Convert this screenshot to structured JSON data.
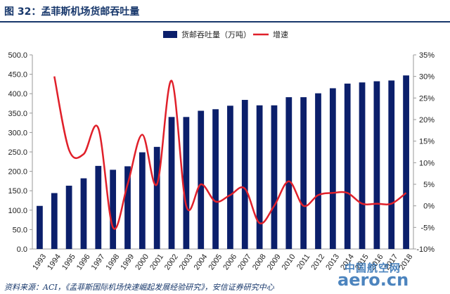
{
  "figure": {
    "title": "图 32：孟菲斯机场货邮吞吐量",
    "source": "资料来源：ACI，《孟菲斯国际机场快速崛起发展经验研究》，安信证券研究中心",
    "watermark": "aero.cn 中国航空网"
  },
  "chart_data": {
    "type": "bar",
    "categories": [
      "1993",
      "1994",
      "1995",
      "1996",
      "1997",
      "1998",
      "1999",
      "2000",
      "2001",
      "2002",
      "2003",
      "2004",
      "2005",
      "2006",
      "2007",
      "2008",
      "2009",
      "2010",
      "2011",
      "2012",
      "2013",
      "2014",
      "2015",
      "2016",
      "2017",
      "2018"
    ],
    "series": [
      {
        "name": "货邮吞吐量（万吨）",
        "type": "bar",
        "axis": "left",
        "color": "#0b1f6b",
        "values": [
          111,
          144,
          163,
          182,
          214,
          204,
          213,
          249,
          263,
          340,
          340,
          356,
          360,
          369,
          384,
          370,
          370,
          391,
          391,
          401,
          414,
          426,
          429,
          432,
          434,
          447
        ]
      },
      {
        "name": "增速",
        "type": "line",
        "axis": "right",
        "color": "#e0202a",
        "values": [
          null,
          30.0,
          13.0,
          12.0,
          18.0,
          -5.0,
          5.0,
          16.5,
          5.0,
          29.0,
          0.0,
          5.0,
          1.0,
          2.5,
          4.0,
          -4.0,
          0.0,
          5.7,
          0.0,
          2.5,
          3.0,
          3.0,
          0.5,
          0.5,
          0.5,
          3.0
        ]
      }
    ],
    "y_left": {
      "min": 0,
      "max": 500,
      "step": 50,
      "tick_labels": [
        "0.0",
        "50.0",
        "100.0",
        "150.0",
        "200.0",
        "250.0",
        "300.0",
        "350.0",
        "400.0",
        "450.0",
        "500.0"
      ]
    },
    "y_right": {
      "min": -10,
      "max": 35,
      "step": 5,
      "tick_labels": [
        "-10%",
        "-5%",
        "0%",
        "5%",
        "10%",
        "15%",
        "20%",
        "25%",
        "30%",
        "35%"
      ]
    },
    "legend": {
      "position": "top-center",
      "bar_label": "货邮吞吐量（万吨）",
      "line_label": "增速"
    },
    "grid": false
  }
}
